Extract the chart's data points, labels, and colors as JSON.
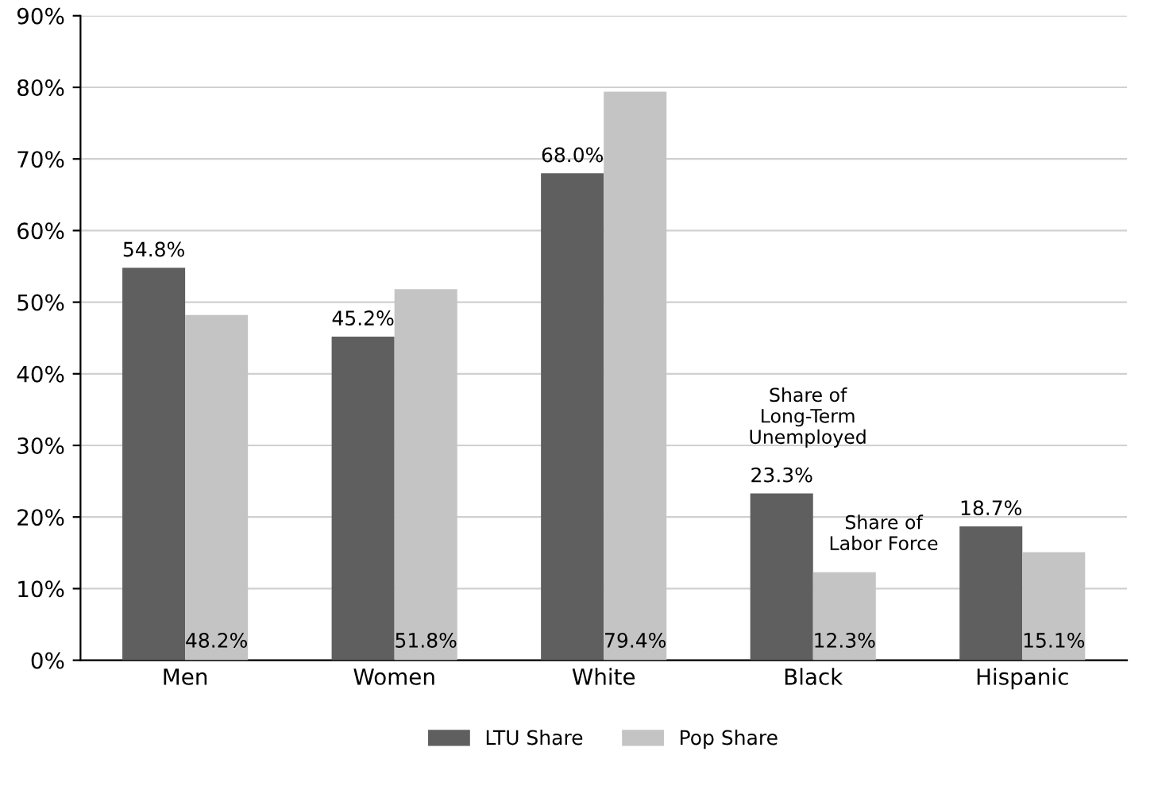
{
  "chart_data": {
    "type": "bar",
    "categories": [
      "Men",
      "Women",
      "White",
      "Black",
      "Hispanic"
    ],
    "series": [
      {
        "name": "LTU Share",
        "color": "#5f5f5f",
        "values": [
          54.8,
          45.2,
          68.0,
          23.3,
          18.7
        ],
        "value_labels": [
          "54.8%",
          "45.2%",
          "68.0%",
          "23.3%",
          "18.7%"
        ]
      },
      {
        "name": "Pop Share",
        "color": "#c4c4c4",
        "values": [
          48.2,
          51.8,
          79.4,
          12.3,
          15.1
        ],
        "value_labels": [
          "48.2%",
          "51.8%",
          "79.4%",
          "12.3%",
          "15.1%"
        ]
      }
    ],
    "ylim": [
      0,
      90
    ],
    "yticks": [
      {
        "value": 0,
        "label": "0%"
      },
      {
        "value": 10,
        "label": "10%"
      },
      {
        "value": 20,
        "label": "20%"
      },
      {
        "value": 30,
        "label": "30%"
      },
      {
        "value": 40,
        "label": "40%"
      },
      {
        "value": 50,
        "label": "50%"
      },
      {
        "value": 60,
        "label": "60%"
      },
      {
        "value": 70,
        "label": "70%"
      },
      {
        "value": 80,
        "label": "80%"
      },
      {
        "value": 90,
        "label": "90%"
      }
    ],
    "grid": "y",
    "legend": "bottom",
    "annotations": [
      "Share of\nLong-Term\nUnemployed",
      "Share of\nLabor Force"
    ]
  }
}
